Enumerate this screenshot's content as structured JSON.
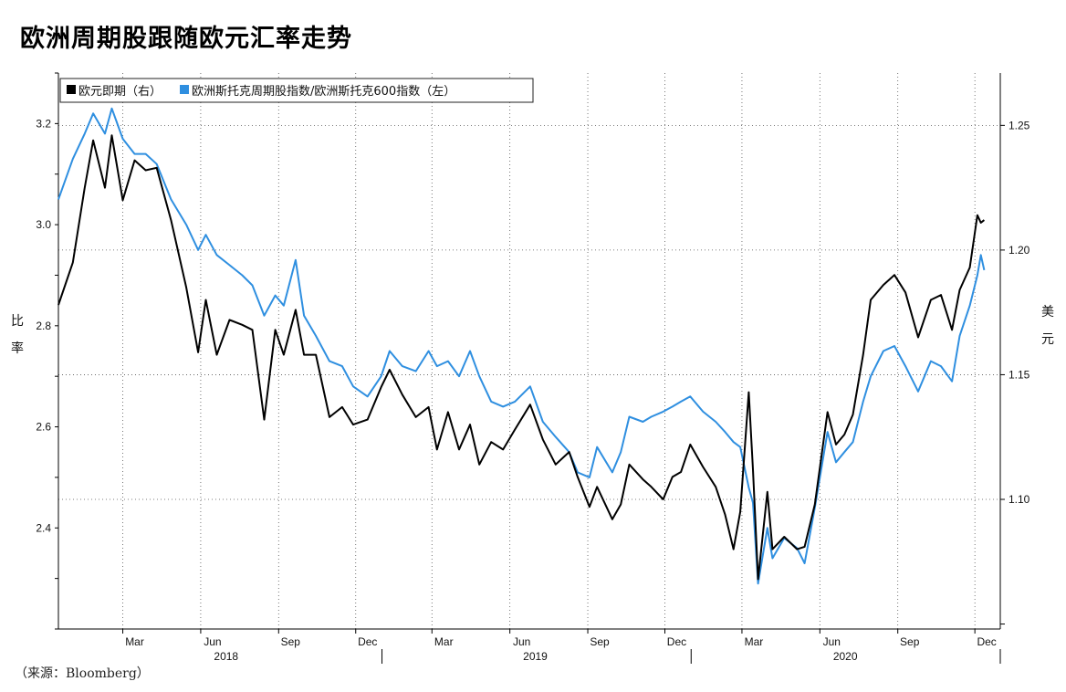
{
  "title": "欧洲周期股跟随欧元汇率走势",
  "source": "（来源：Bloomberg）",
  "chart_data": {
    "type": "line",
    "title": "欧洲周期股跟随欧元汇率走势",
    "legend_position": "top-left",
    "grid": true,
    "x_months": [
      "Mar",
      "Jun",
      "Sep",
      "Dec",
      "Mar",
      "Jun",
      "Sep",
      "Dec",
      "Mar",
      "Jun",
      "Sep",
      "Dec"
    ],
    "x_years": [
      "2018",
      "2019",
      "2020"
    ],
    "xlim": [
      "2017-12-15",
      "2020-12-31"
    ],
    "left_axis": {
      "label": "比率",
      "chars": [
        "比",
        "率"
      ],
      "ticks": [
        "2.4",
        "2.6",
        "2.8",
        "3.0",
        "3.2"
      ],
      "ylim": [
        2.2,
        3.3
      ]
    },
    "right_axis": {
      "label": "美元",
      "chars": [
        "美",
        "元"
      ],
      "ticks": [
        "1.10",
        "1.15",
        "1.20",
        "1.25"
      ],
      "ylim": [
        1.048,
        1.271
      ]
    },
    "series": [
      {
        "name": "欧元即期（右）",
        "axis": "right",
        "color": "#000000",
        "points": [
          [
            "2017-12-15",
            1.178
          ],
          [
            "2018-01-01",
            1.195
          ],
          [
            "2018-01-15",
            1.225
          ],
          [
            "2018-01-25",
            1.244
          ],
          [
            "2018-02-08",
            1.225
          ],
          [
            "2018-02-16",
            1.246
          ],
          [
            "2018-03-01",
            1.22
          ],
          [
            "2018-03-15",
            1.236
          ],
          [
            "2018-03-28",
            1.232
          ],
          [
            "2018-04-10",
            1.233
          ],
          [
            "2018-04-27",
            1.212
          ],
          [
            "2018-05-15",
            1.185
          ],
          [
            "2018-05-29",
            1.159
          ],
          [
            "2018-06-07",
            1.18
          ],
          [
            "2018-06-20",
            1.158
          ],
          [
            "2018-07-05",
            1.172
          ],
          [
            "2018-07-20",
            1.17
          ],
          [
            "2018-08-01",
            1.168
          ],
          [
            "2018-08-15",
            1.132
          ],
          [
            "2018-08-28",
            1.168
          ],
          [
            "2018-09-07",
            1.158
          ],
          [
            "2018-09-21",
            1.176
          ],
          [
            "2018-10-01",
            1.158
          ],
          [
            "2018-10-15",
            1.158
          ],
          [
            "2018-10-31",
            1.133
          ],
          [
            "2018-11-15",
            1.137
          ],
          [
            "2018-11-28",
            1.13
          ],
          [
            "2018-12-15",
            1.132
          ],
          [
            "2018-12-31",
            1.145
          ],
          [
            "2019-01-10",
            1.152
          ],
          [
            "2019-01-25",
            1.142
          ],
          [
            "2019-02-10",
            1.133
          ],
          [
            "2019-02-25",
            1.137
          ],
          [
            "2019-03-07",
            1.12
          ],
          [
            "2019-03-20",
            1.135
          ],
          [
            "2019-04-02",
            1.12
          ],
          [
            "2019-04-15",
            1.13
          ],
          [
            "2019-04-26",
            1.114
          ],
          [
            "2019-05-10",
            1.123
          ],
          [
            "2019-05-24",
            1.12
          ],
          [
            "2019-06-07",
            1.128
          ],
          [
            "2019-06-25",
            1.138
          ],
          [
            "2019-07-10",
            1.124
          ],
          [
            "2019-07-25",
            1.114
          ],
          [
            "2019-08-10",
            1.119
          ],
          [
            "2019-08-20",
            1.109
          ],
          [
            "2019-09-03",
            1.097
          ],
          [
            "2019-09-12",
            1.105
          ],
          [
            "2019-09-30",
            1.092
          ],
          [
            "2019-10-10",
            1.098
          ],
          [
            "2019-10-20",
            1.114
          ],
          [
            "2019-11-05",
            1.108
          ],
          [
            "2019-11-15",
            1.105
          ],
          [
            "2019-11-29",
            1.1
          ],
          [
            "2019-12-10",
            1.109
          ],
          [
            "2019-12-20",
            1.111
          ],
          [
            "2019-12-31",
            1.122
          ],
          [
            "2020-01-15",
            1.113
          ],
          [
            "2020-01-30",
            1.105
          ],
          [
            "2020-02-10",
            1.094
          ],
          [
            "2020-02-20",
            1.08
          ],
          [
            "2020-02-28",
            1.095
          ],
          [
            "2020-03-09",
            1.143
          ],
          [
            "2020-03-14",
            1.112
          ],
          [
            "2020-03-20",
            1.068
          ],
          [
            "2020-03-31",
            1.103
          ],
          [
            "2020-04-06",
            1.08
          ],
          [
            "2020-04-20",
            1.085
          ],
          [
            "2020-05-05",
            1.08
          ],
          [
            "2020-05-14",
            1.081
          ],
          [
            "2020-05-26",
            1.098
          ],
          [
            "2020-06-10",
            1.135
          ],
          [
            "2020-06-20",
            1.122
          ],
          [
            "2020-06-30",
            1.126
          ],
          [
            "2020-07-10",
            1.134
          ],
          [
            "2020-07-22",
            1.158
          ],
          [
            "2020-07-31",
            1.18
          ],
          [
            "2020-08-15",
            1.186
          ],
          [
            "2020-08-28",
            1.19
          ],
          [
            "2020-09-10",
            1.183
          ],
          [
            "2020-09-25",
            1.165
          ],
          [
            "2020-10-10",
            1.18
          ],
          [
            "2020-10-22",
            1.182
          ],
          [
            "2020-11-04",
            1.168
          ],
          [
            "2020-11-13",
            1.184
          ],
          [
            "2020-11-25",
            1.193
          ],
          [
            "2020-12-04",
            1.214
          ],
          [
            "2020-12-08",
            1.211
          ],
          [
            "2020-12-12",
            1.212
          ]
        ]
      },
      {
        "name": "欧洲斯托克周期股指数/欧洲斯托克600指数（左）",
        "axis": "left",
        "color": "#2f8fe0",
        "points": [
          [
            "2017-12-15",
            3.05
          ],
          [
            "2018-01-01",
            3.13
          ],
          [
            "2018-01-15",
            3.18
          ],
          [
            "2018-01-25",
            3.22
          ],
          [
            "2018-02-08",
            3.18
          ],
          [
            "2018-02-16",
            3.23
          ],
          [
            "2018-03-01",
            3.17
          ],
          [
            "2018-03-15",
            3.14
          ],
          [
            "2018-03-28",
            3.14
          ],
          [
            "2018-04-10",
            3.12
          ],
          [
            "2018-04-27",
            3.05
          ],
          [
            "2018-05-15",
            3.0
          ],
          [
            "2018-05-29",
            2.95
          ],
          [
            "2018-06-07",
            2.98
          ],
          [
            "2018-06-20",
            2.94
          ],
          [
            "2018-07-05",
            2.92
          ],
          [
            "2018-07-20",
            2.9
          ],
          [
            "2018-08-01",
            2.88
          ],
          [
            "2018-08-15",
            2.82
          ],
          [
            "2018-08-28",
            2.86
          ],
          [
            "2018-09-07",
            2.84
          ],
          [
            "2018-09-21",
            2.93
          ],
          [
            "2018-10-01",
            2.82
          ],
          [
            "2018-10-15",
            2.78
          ],
          [
            "2018-10-31",
            2.73
          ],
          [
            "2018-11-15",
            2.72
          ],
          [
            "2018-11-28",
            2.68
          ],
          [
            "2018-12-15",
            2.66
          ],
          [
            "2018-12-31",
            2.7
          ],
          [
            "2019-01-10",
            2.75
          ],
          [
            "2019-01-25",
            2.72
          ],
          [
            "2019-02-10",
            2.71
          ],
          [
            "2019-02-25",
            2.75
          ],
          [
            "2019-03-07",
            2.72
          ],
          [
            "2019-03-20",
            2.73
          ],
          [
            "2019-04-02",
            2.7
          ],
          [
            "2019-04-15",
            2.75
          ],
          [
            "2019-04-26",
            2.7
          ],
          [
            "2019-05-10",
            2.65
          ],
          [
            "2019-05-24",
            2.64
          ],
          [
            "2019-06-07",
            2.65
          ],
          [
            "2019-06-25",
            2.68
          ],
          [
            "2019-07-10",
            2.61
          ],
          [
            "2019-07-25",
            2.58
          ],
          [
            "2019-08-10",
            2.55
          ],
          [
            "2019-08-20",
            2.51
          ],
          [
            "2019-09-03",
            2.5
          ],
          [
            "2019-09-12",
            2.56
          ],
          [
            "2019-09-30",
            2.51
          ],
          [
            "2019-10-10",
            2.55
          ],
          [
            "2019-10-20",
            2.62
          ],
          [
            "2019-11-05",
            2.61
          ],
          [
            "2019-11-15",
            2.62
          ],
          [
            "2019-11-29",
            2.63
          ],
          [
            "2019-12-10",
            2.64
          ],
          [
            "2019-12-20",
            2.65
          ],
          [
            "2019-12-31",
            2.66
          ],
          [
            "2020-01-15",
            2.63
          ],
          [
            "2020-01-30",
            2.61
          ],
          [
            "2020-02-10",
            2.59
          ],
          [
            "2020-02-20",
            2.57
          ],
          [
            "2020-02-28",
            2.56
          ],
          [
            "2020-03-09",
            2.48
          ],
          [
            "2020-03-14",
            2.45
          ],
          [
            "2020-03-20",
            2.29
          ],
          [
            "2020-03-31",
            2.4
          ],
          [
            "2020-04-06",
            2.34
          ],
          [
            "2020-04-20",
            2.38
          ],
          [
            "2020-05-05",
            2.36
          ],
          [
            "2020-05-14",
            2.33
          ],
          [
            "2020-05-26",
            2.44
          ],
          [
            "2020-06-10",
            2.59
          ],
          [
            "2020-06-20",
            2.53
          ],
          [
            "2020-06-30",
            2.55
          ],
          [
            "2020-07-10",
            2.57
          ],
          [
            "2020-07-22",
            2.65
          ],
          [
            "2020-07-31",
            2.7
          ],
          [
            "2020-08-15",
            2.75
          ],
          [
            "2020-08-28",
            2.76
          ],
          [
            "2020-09-10",
            2.72
          ],
          [
            "2020-09-25",
            2.67
          ],
          [
            "2020-10-10",
            2.73
          ],
          [
            "2020-10-22",
            2.72
          ],
          [
            "2020-11-04",
            2.69
          ],
          [
            "2020-11-13",
            2.78
          ],
          [
            "2020-11-25",
            2.84
          ],
          [
            "2020-12-04",
            2.9
          ],
          [
            "2020-12-08",
            2.94
          ],
          [
            "2020-12-12",
            2.91
          ]
        ]
      }
    ]
  }
}
